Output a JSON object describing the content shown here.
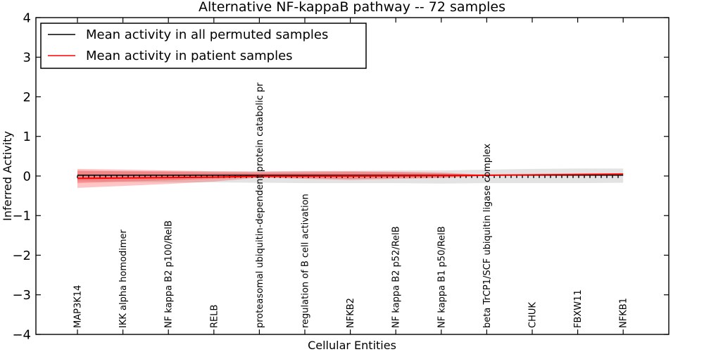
{
  "title": "Alternative NF-kappaB pathway -- 72 samples",
  "xlabel": "Cellular Entities",
  "ylabel": "Inferred Activity",
  "legend": {
    "permuted": "Mean activity in all permuted samples",
    "patient": "Mean activity in patient samples"
  },
  "colors": {
    "permuted_line": "#000000",
    "patient_line": "#ff0000",
    "patient_band": "rgba(255,20,20,0.25)",
    "permuted_band": "rgba(80,80,80,0.16)",
    "background": "#ffffff"
  },
  "chart_data": {
    "type": "line",
    "title": "Alternative NF-kappaB pathway -- 72 samples",
    "xlabel": "Cellular Entities",
    "ylabel": "Inferred Activity",
    "ylim": [
      -4,
      4
    ],
    "ytick_values": [
      -4,
      -3,
      -2,
      -1,
      0,
      1,
      2,
      3,
      4
    ],
    "ytick_labels": [
      "−4",
      "−3",
      "−2",
      "−1",
      "0",
      "1",
      "2",
      "3",
      "4"
    ],
    "grid": false,
    "legend_position": "upper left",
    "categories": [
      "MAP3K14",
      "IKK alpha homodimer",
      "NF kappa B2 p100/RelB",
      "RELB",
      "proteasomal ubiquitin-dependent protein catabolic pr",
      "regulation of B cell activation",
      "NFKB2",
      "NF kappa B2 p52/RelB",
      "NF kappa B1 p50/RelB",
      "beta TrCP1/SCF ubiquitin ligase complex",
      "CHUK",
      "FBXW11",
      "NFKB1"
    ],
    "series": [
      {
        "key": "permuted",
        "name": "Mean activity in all permuted samples",
        "color": "#000000",
        "width": 1.4,
        "marker": "|",
        "values": [
          0.02,
          0.02,
          0.02,
          0.02,
          0.02,
          0.02,
          0.02,
          0.02,
          0.02,
          0.02,
          0.02,
          0.02,
          0.02
        ]
      },
      {
        "key": "patient",
        "name": "Mean activity in patient samples",
        "color": "#ff0000",
        "width": 2,
        "marker": "none",
        "values": [
          -0.06,
          -0.05,
          -0.04,
          -0.03,
          -0.005,
          -0.005,
          0.0,
          0.005,
          0.01,
          0.02,
          0.03,
          0.04,
          0.05
        ]
      }
    ],
    "bands": [
      {
        "name": "permuted-spread",
        "color": "rgba(80,80,80,0.16)",
        "upper": [
          0.12,
          0.12,
          0.12,
          0.12,
          0.12,
          0.13,
          0.13,
          0.14,
          0.14,
          0.16,
          0.18,
          0.19,
          0.19
        ],
        "lower": [
          -0.14,
          -0.15,
          -0.16,
          -0.16,
          -0.17,
          -0.18,
          -0.18,
          -0.18,
          -0.19,
          -0.18,
          -0.18,
          -0.18,
          -0.17
        ]
      },
      {
        "name": "patient-spread-upper",
        "color": "rgba(255,20,20,0.25)",
        "upper": [
          0.18,
          0.16,
          0.14,
          0.12,
          0.11,
          0.12,
          0.12,
          0.11,
          0.09,
          0.03,
          0.03,
          0.04,
          0.05
        ],
        "lower": [
          -0.18,
          -0.14,
          -0.11,
          -0.07,
          -0.04,
          -0.05,
          -0.07,
          -0.05,
          -0.04,
          0.01,
          0.03,
          0.04,
          0.05
        ]
      },
      {
        "name": "patient-spread-lower",
        "color": "rgba(255,20,20,0.25)",
        "upper": [
          0.14,
          0.12,
          0.11,
          0.09,
          0.08,
          0.09,
          0.1,
          0.09,
          0.07,
          0.02,
          0.03,
          0.04,
          0.05
        ],
        "lower": [
          -0.3,
          -0.25,
          -0.2,
          -0.14,
          -0.04,
          -0.07,
          -0.1,
          -0.07,
          -0.05,
          0.0,
          0.03,
          0.04,
          0.05
        ]
      }
    ]
  }
}
